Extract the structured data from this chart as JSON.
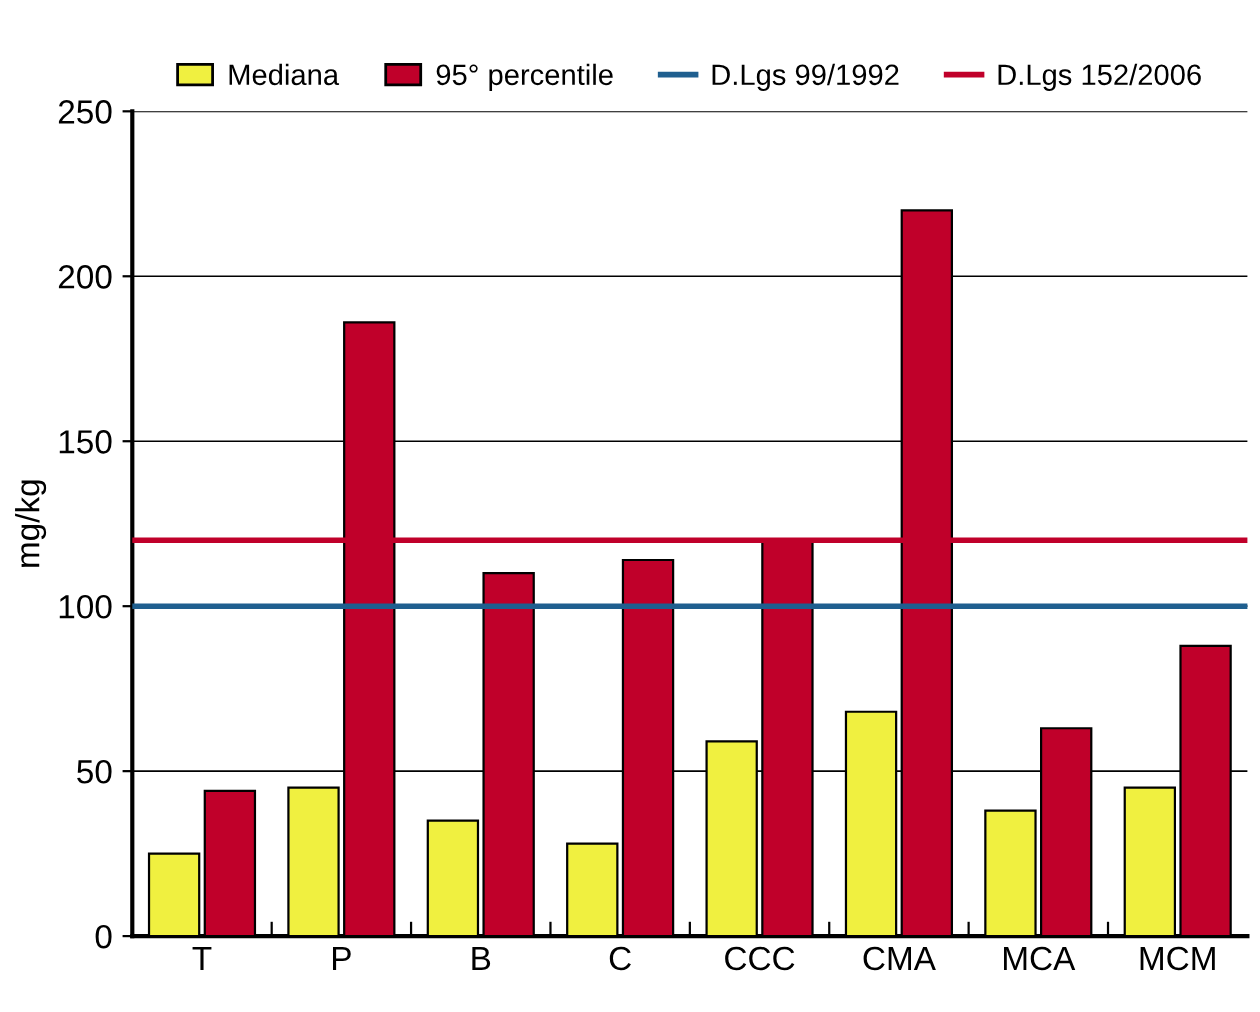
{
  "chart_data": {
    "type": "bar",
    "ylabel": "mg/kg",
    "categories": [
      "T",
      "P",
      "B",
      "C",
      "CCC",
      "CMA",
      "MCA",
      "MCM"
    ],
    "series": [
      {
        "name": "Mediana",
        "color": "#f0f040",
        "values": [
          25,
          45,
          35,
          28,
          59,
          68,
          38,
          45
        ]
      },
      {
        "name": "95° percentile",
        "color": "#c0002a",
        "values": [
          44,
          186,
          110,
          114,
          120,
          220,
          63,
          88
        ]
      }
    ],
    "ref_lines": [
      {
        "axis": "y",
        "value": 100,
        "label": "D.Lgs 99/1992",
        "color": "#1f5f8f"
      },
      {
        "axis": "y",
        "value": 120,
        "label": "D.Lgs 152/2006",
        "color": "#c0002a"
      }
    ],
    "ylim": [
      0,
      250
    ],
    "yticks": [
      0,
      50,
      100,
      150,
      200,
      250
    ],
    "grid": "y",
    "legend": "top"
  }
}
